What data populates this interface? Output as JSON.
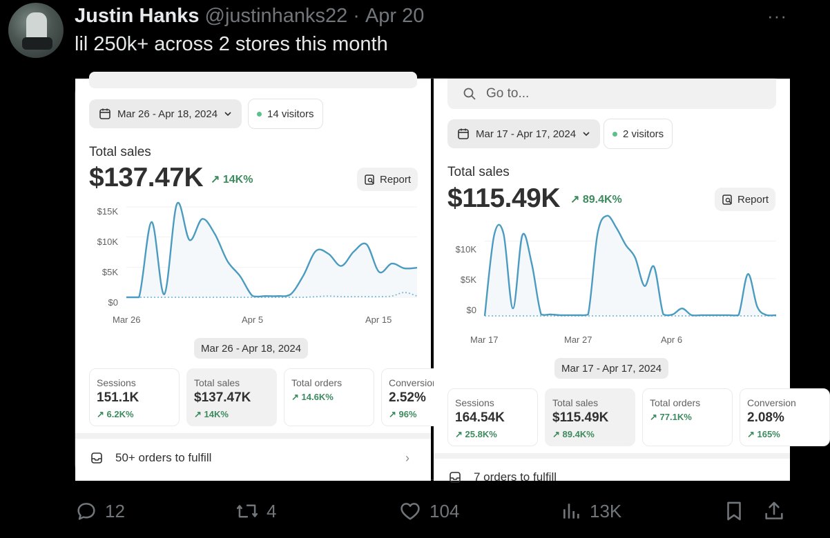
{
  "tweet": {
    "name": "Justin Hanks",
    "handle": "@justinhanks22",
    "separator": "·",
    "date": "Apr 20",
    "more": "···",
    "text": "lil 250k+ across 2 stores this month"
  },
  "stores": [
    {
      "date_range": "Mar 26 - Apr 18, 2024",
      "visitors": "14 visitors",
      "total_sales_label": "Total sales",
      "total_sales": "$137.47K",
      "change": "14K%",
      "report": "Report",
      "range_pill": "Mar 26 - Apr 18, 2024",
      "metrics": [
        {
          "label": "Sessions",
          "value": "151.1K",
          "change": "6.2K%"
        },
        {
          "label": "Total sales",
          "value": "$137.47K",
          "change": "14K%"
        },
        {
          "label": "Total orders",
          "value": "",
          "change": "14.6K%"
        },
        {
          "label": "Conversion",
          "value": "2.52%",
          "change": "96%"
        }
      ],
      "fulfill": "50+ orders to fulfill"
    },
    {
      "search_placeholder": "Go to...",
      "date_range": "Mar 17 - Apr 17, 2024",
      "visitors": "2 visitors",
      "total_sales_label": "Total sales",
      "total_sales": "$115.49K",
      "change": "89.4K%",
      "report": "Report",
      "range_pill": "Mar 17 - Apr 17, 2024",
      "metrics": [
        {
          "label": "Sessions",
          "value": "164.54K",
          "change": "25.8K%"
        },
        {
          "label": "Total sales",
          "value": "$115.49K",
          "change": "89.4K%"
        },
        {
          "label": "Total orders",
          "value": "",
          "change": "77.1K%"
        },
        {
          "label": "Conversion",
          "value": "2.08%",
          "change": "165%"
        }
      ],
      "fulfill": "7 orders to fulfill"
    }
  ],
  "chart_data": [
    {
      "type": "line",
      "ylim": [
        0,
        15000
      ],
      "y_ticks": [
        "$15K",
        "$10K",
        "$5K",
        "$0"
      ],
      "x_ticks": [
        "Mar 26",
        "Apr 5",
        "Apr 15"
      ],
      "x": [
        "Mar 26",
        "Mar 27",
        "Mar 28",
        "Mar 29",
        "Mar 30",
        "Mar 31",
        "Apr 1",
        "Apr 2",
        "Apr 3",
        "Apr 4",
        "Apr 5",
        "Apr 6",
        "Apr 7",
        "Apr 8",
        "Apr 9",
        "Apr 10",
        "Apr 11",
        "Apr 12",
        "Apr 13",
        "Apr 14",
        "Apr 15",
        "Apr 16",
        "Apr 17",
        "Apr 18"
      ],
      "series": [
        {
          "values": [
            0,
            0,
            12500,
            500,
            15500,
            9500,
            13000,
            10500,
            6000,
            3500,
            200,
            200,
            200,
            500,
            3600,
            7700,
            7200,
            5200,
            7600,
            8800,
            4200,
            5600,
            4800,
            4900
          ]
        },
        {
          "values": [
            0,
            0,
            0,
            0,
            0,
            0,
            0,
            0,
            0,
            0,
            0,
            0,
            0,
            0,
            0,
            100,
            200,
            100,
            100,
            100,
            100,
            200,
            800,
            200
          ]
        }
      ]
    },
    {
      "type": "line",
      "ylim": [
        0,
        12000
      ],
      "y_ticks": [
        "$10K",
        "$5K",
        "$0"
      ],
      "x_ticks": [
        "Mar 17",
        "Mar 27",
        "Apr 6"
      ],
      "x": [
        "Mar 17",
        "Mar 18",
        "Mar 19",
        "Mar 20",
        "Mar 21",
        "Mar 22",
        "Mar 23",
        "Mar 24",
        "Mar 25",
        "Mar 26",
        "Mar 27",
        "Mar 28",
        "Mar 29",
        "Mar 30",
        "Mar 31",
        "Apr 1",
        "Apr 2",
        "Apr 3",
        "Apr 4",
        "Apr 5",
        "Apr 6",
        "Apr 7",
        "Apr 8",
        "Apr 9",
        "Apr 10",
        "Apr 11",
        "Apr 12",
        "Apr 13",
        "Apr 14",
        "Apr 15",
        "Apr 16",
        "Apr 17"
      ],
      "series": [
        {
          "values": [
            0,
            10800,
            11000,
            1000,
            10800,
            7000,
            200,
            200,
            100,
            100,
            100,
            200,
            11000,
            13400,
            11800,
            9500,
            7800,
            4000,
            6600,
            200,
            200,
            1000,
            100,
            100,
            100,
            100,
            100,
            100,
            5600,
            1200,
            100,
            100
          ]
        },
        {
          "values": [
            0,
            0,
            0,
            0,
            0,
            0,
            0,
            0,
            0,
            0,
            0,
            0,
            0,
            0,
            0,
            0,
            0,
            0,
            0,
            0,
            0,
            0,
            0,
            0,
            0,
            0,
            0,
            0,
            0,
            0,
            0,
            0
          ]
        }
      ]
    }
  ],
  "actions": {
    "replies": "12",
    "reposts": "4",
    "likes": "104",
    "views": "13K"
  },
  "colors": {
    "line": "#4b9bc1",
    "compare_line": "#7cbbd7",
    "positive": "#3c8a5d"
  }
}
